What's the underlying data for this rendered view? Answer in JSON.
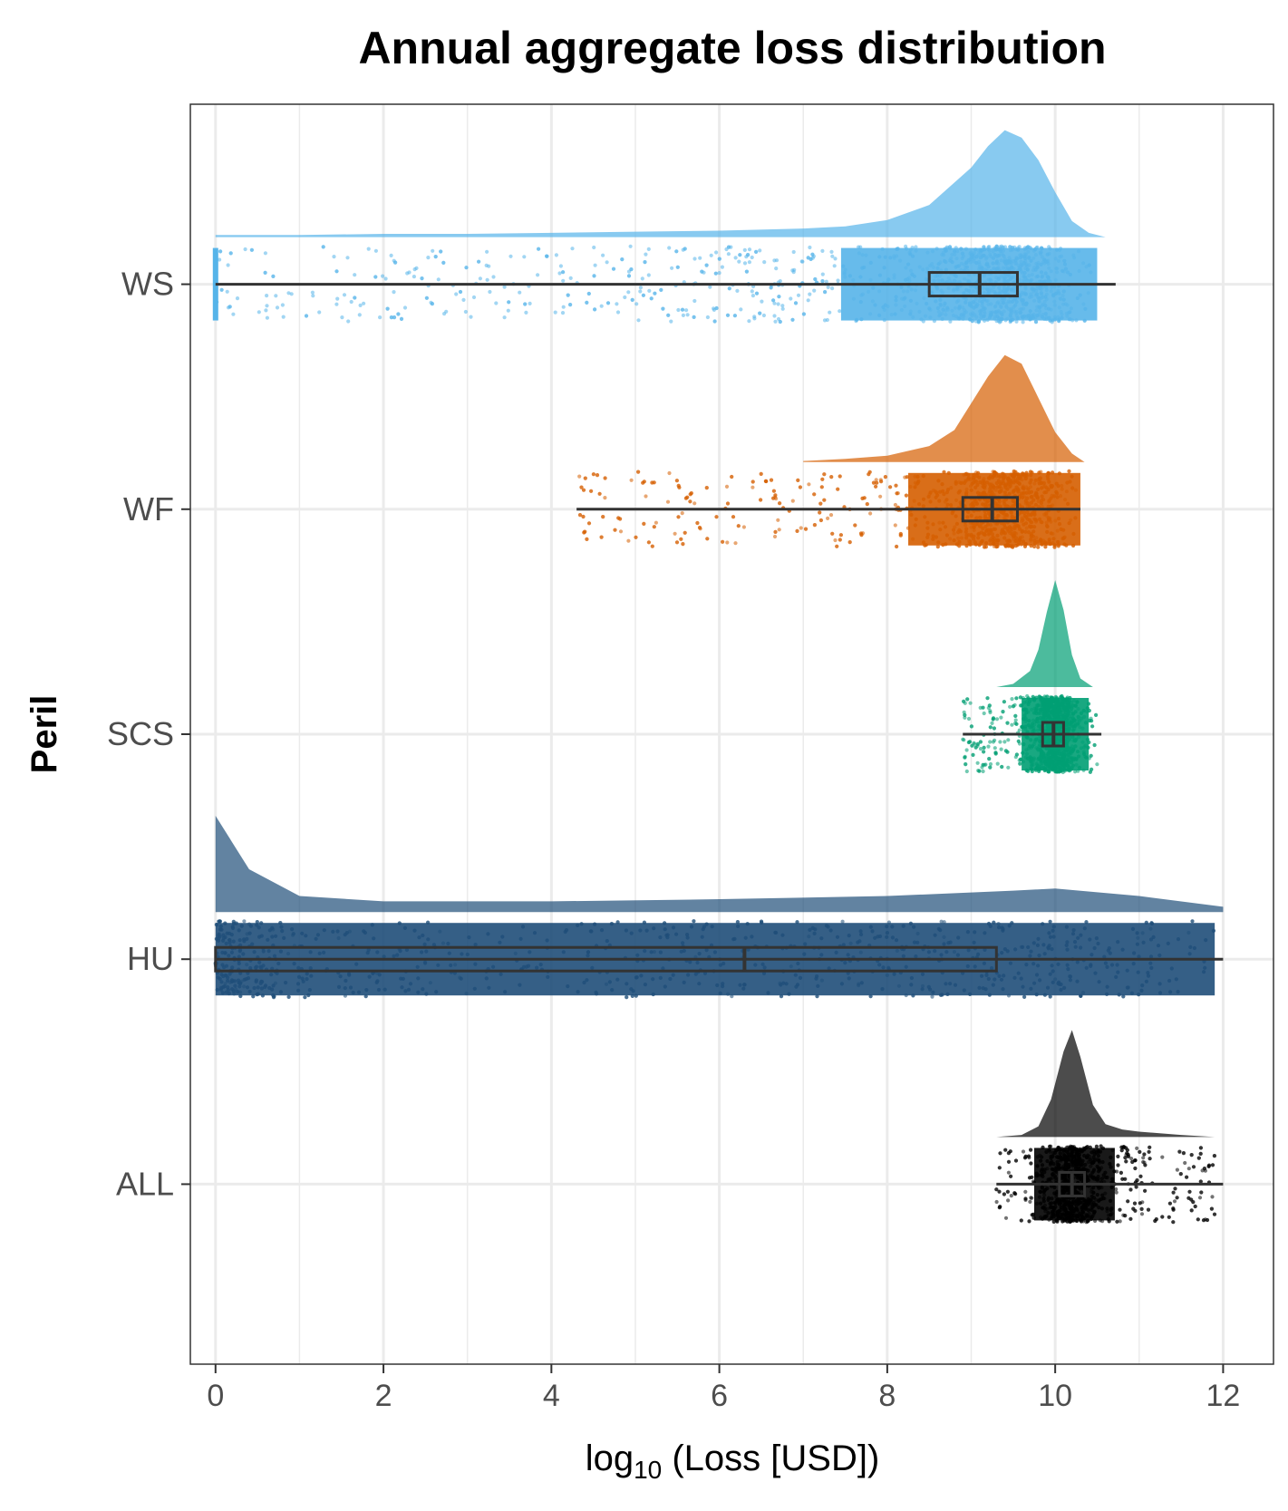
{
  "chart_data": {
    "type": "raincloud",
    "title": "Annual aggregate loss distribution",
    "xlabel": {
      "prefix": "log",
      "subscript": "10",
      "suffix": " (Loss [USD])"
    },
    "ylabel": "Peril",
    "xlim": [
      -0.3,
      12.6
    ],
    "x_ticks": [
      0,
      2,
      4,
      6,
      8,
      10,
      12
    ],
    "grid": true,
    "categories": [
      "WS",
      "WF",
      "SCS",
      "HU",
      "ALL"
    ],
    "series": [
      {
        "name": "WS",
        "color": "#56b4e9",
        "point_range": [
          0,
          10.5
        ],
        "points_min": 0.0,
        "box": {
          "min": 0.0,
          "q1": 8.5,
          "median": 9.1,
          "q3": 9.55,
          "max": 10.72
        },
        "density": [
          [
            0,
            0.02
          ],
          [
            1,
            0.02
          ],
          [
            2,
            0.03
          ],
          [
            3,
            0.03
          ],
          [
            4,
            0.04
          ],
          [
            5,
            0.05
          ],
          [
            6,
            0.06
          ],
          [
            7,
            0.08
          ],
          [
            7.5,
            0.1
          ],
          [
            8,
            0.16
          ],
          [
            8.5,
            0.3
          ],
          [
            9,
            0.65
          ],
          [
            9.2,
            0.85
          ],
          [
            9.4,
            1.0
          ],
          [
            9.6,
            0.93
          ],
          [
            9.8,
            0.72
          ],
          [
            10,
            0.42
          ],
          [
            10.2,
            0.15
          ],
          [
            10.4,
            0.04
          ],
          [
            10.6,
            0.0
          ]
        ]
      },
      {
        "name": "WF",
        "color": "#d55e00",
        "point_range": [
          4.3,
          10.3
        ],
        "box": {
          "min": 4.3,
          "q1": 8.9,
          "median": 9.25,
          "q3": 9.55,
          "max": 10.3
        },
        "density": [
          [
            7,
            0.01
          ],
          [
            7.5,
            0.03
          ],
          [
            8,
            0.06
          ],
          [
            8.5,
            0.15
          ],
          [
            8.8,
            0.3
          ],
          [
            9,
            0.55
          ],
          [
            9.2,
            0.8
          ],
          [
            9.4,
            1.0
          ],
          [
            9.6,
            0.92
          ],
          [
            9.8,
            0.6
          ],
          [
            10,
            0.28
          ],
          [
            10.2,
            0.08
          ],
          [
            10.35,
            0.0
          ]
        ]
      },
      {
        "name": "SCS",
        "color": "#009e73",
        "point_range": [
          8.9,
          10.5
        ],
        "box": {
          "min": 8.9,
          "q1": 9.85,
          "median": 9.98,
          "q3": 10.1,
          "max": 10.55
        },
        "density": [
          [
            9.3,
            0.0
          ],
          [
            9.5,
            0.03
          ],
          [
            9.7,
            0.15
          ],
          [
            9.8,
            0.35
          ],
          [
            9.9,
            0.7
          ],
          [
            10,
            1.0
          ],
          [
            10.1,
            0.72
          ],
          [
            10.2,
            0.3
          ],
          [
            10.3,
            0.08
          ],
          [
            10.45,
            0.0
          ]
        ]
      },
      {
        "name": "HU",
        "color": "#1f4e79",
        "point_range": [
          0,
          11.9
        ],
        "box": {
          "min": 0.0,
          "q1": 0.0,
          "median": 6.3,
          "q3": 9.3,
          "max": 12.0
        },
        "density": [
          [
            0,
            0.9
          ],
          [
            0.4,
            0.4
          ],
          [
            1,
            0.15
          ],
          [
            2,
            0.1
          ],
          [
            4,
            0.1
          ],
          [
            6,
            0.12
          ],
          [
            8,
            0.15
          ],
          [
            9.5,
            0.2
          ],
          [
            10,
            0.22
          ],
          [
            11,
            0.15
          ],
          [
            12,
            0.05
          ]
        ]
      },
      {
        "name": "ALL",
        "color": "#000000",
        "point_range": [
          9.3,
          11.9
        ],
        "box": {
          "min": 9.3,
          "q1": 10.05,
          "median": 10.2,
          "q3": 10.35,
          "max": 12.0
        },
        "density": [
          [
            9.3,
            0.0
          ],
          [
            9.6,
            0.02
          ],
          [
            9.8,
            0.1
          ],
          [
            9.95,
            0.35
          ],
          [
            10.1,
            0.8
          ],
          [
            10.2,
            1.0
          ],
          [
            10.3,
            0.75
          ],
          [
            10.45,
            0.3
          ],
          [
            10.6,
            0.12
          ],
          [
            10.8,
            0.07
          ],
          [
            11,
            0.05
          ],
          [
            11.5,
            0.02
          ],
          [
            11.9,
            0.0
          ]
        ]
      }
    ]
  }
}
